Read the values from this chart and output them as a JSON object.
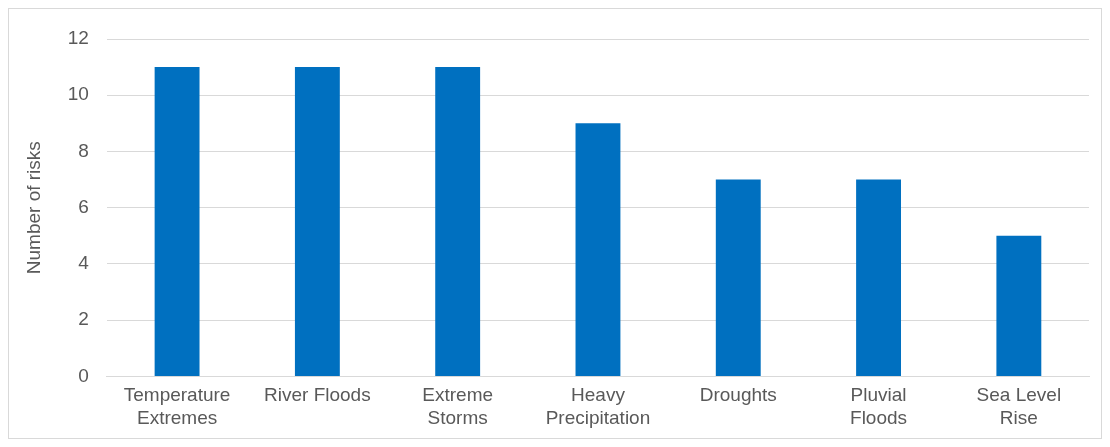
{
  "chart_data": {
    "type": "bar",
    "ylabel": "Number of risks",
    "categories": [
      "Temperature Extremes",
      "River Floods",
      "Extreme Storms",
      "Heavy Precipitation",
      "Droughts",
      "Pluvial Floods",
      "Sea Level Rise"
    ],
    "values": [
      11,
      11,
      11,
      9,
      7,
      7,
      5
    ],
    "color": "#0070c0",
    "ylim": [
      0,
      12
    ],
    "yticks": [
      0,
      2,
      4,
      6,
      8,
      10,
      12
    ],
    "grid": "y",
    "legend": false
  }
}
